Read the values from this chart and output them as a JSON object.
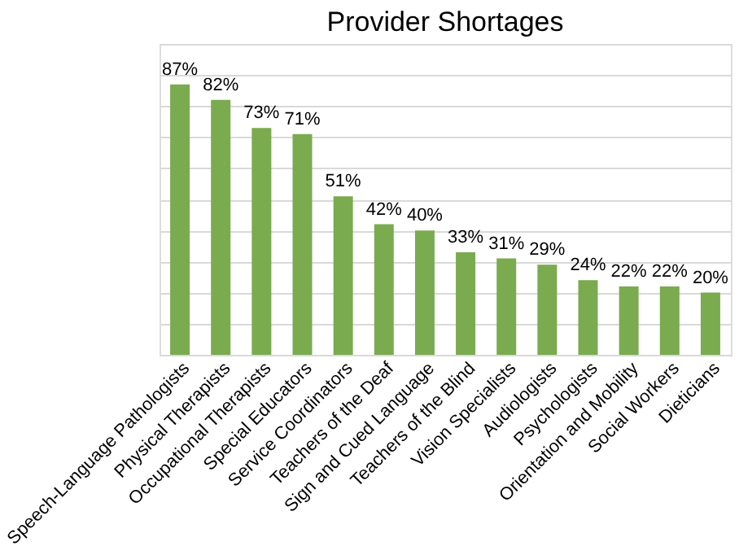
{
  "chart_data": {
    "type": "bar",
    "title": "Provider Shortages",
    "categories": [
      "Speech-Language Pathologists",
      "Physical Therapists",
      "Occupational Therapists",
      "Special Educators",
      "Service Coordinators",
      "Teachers of the Deaf",
      "Sign and Cued Language",
      "Teachers of the Blind",
      "Vision Specialists",
      "Audiologists",
      "Psychologists",
      "Orientation and Mobility",
      "Social Workers",
      "Dieticians"
    ],
    "values": [
      87,
      82,
      73,
      71,
      51,
      42,
      40,
      33,
      31,
      29,
      24,
      22,
      22,
      20
    ],
    "value_labels": [
      "87%",
      "82%",
      "73%",
      "71%",
      "51%",
      "42%",
      "40%",
      "33%",
      "31%",
      "29%",
      "24%",
      "22%",
      "22%",
      "20%"
    ],
    "color": "#7aab4f",
    "ylim": [
      0,
      100
    ],
    "yticks": [
      {
        "value": 0,
        "label": null
      },
      {
        "value": 10,
        "label": null
      },
      {
        "value": 20,
        "label": null
      },
      {
        "value": 30,
        "label": null
      },
      {
        "value": 40,
        "label": null
      },
      {
        "value": 50,
        "label": null
      },
      {
        "value": 60,
        "label": null
      },
      {
        "value": 70,
        "label": null
      },
      {
        "value": 80,
        "label": null
      },
      {
        "value": 90,
        "label": null
      },
      {
        "value": 100,
        "label": null
      }
    ],
    "tick_labels": "x",
    "grid": "y"
  }
}
